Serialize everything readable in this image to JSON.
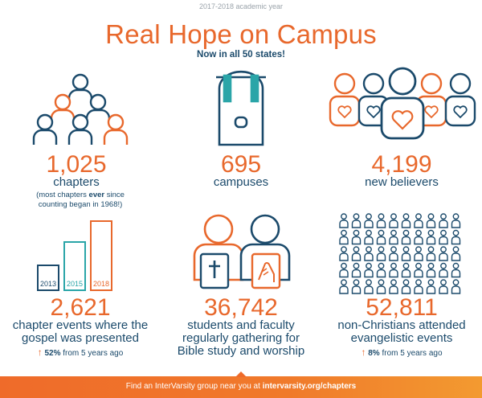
{
  "header": {
    "year": "2017-2018 academic year",
    "title": "Real Hope on Campus",
    "subtitle": "Now in all 50 states!"
  },
  "colors": {
    "orange": "#e8682c",
    "navy": "#1b4a6b",
    "teal": "#2aa5a8"
  },
  "stats": {
    "chapters": {
      "value": "1,025",
      "label": "chapters",
      "note_pre": "(most chapters ",
      "note_bold": "ever",
      "note_post": " since",
      "note_line2": "counting began in 1968!)",
      "icon": "people-group-icon"
    },
    "campuses": {
      "value": "695",
      "label": "campuses",
      "icon": "backpack-icon"
    },
    "believers": {
      "value": "4,199",
      "label": "new believers",
      "icon": "heart-people-icon"
    },
    "events": {
      "value": "2,621",
      "label_line1": "chapter events where the",
      "label_line2": "gospel was presented",
      "change_pct": "52%",
      "change_text": " from 5 years ago",
      "bars": [
        {
          "year": "2013",
          "level": 0.38
        },
        {
          "year": "2015",
          "level": 0.7
        },
        {
          "year": "2018",
          "level": 1.0
        }
      ]
    },
    "students": {
      "value": "36,742",
      "label_line1": "students and faculty",
      "label_line2": "regularly gathering for",
      "label_line3": "Bible study and worship",
      "icon": "bible-praying-hands-icon"
    },
    "nonchristians": {
      "value": "52,811",
      "label_line1": "non-Christians attended",
      "label_line2": "evangelistic events",
      "change_pct": "8%",
      "change_text": " from 5 years ago",
      "icon": "crowd-icon"
    }
  },
  "footer": {
    "text": "Find an InterVarsity group near you at ",
    "link": "intervarsity.org/chapters"
  }
}
